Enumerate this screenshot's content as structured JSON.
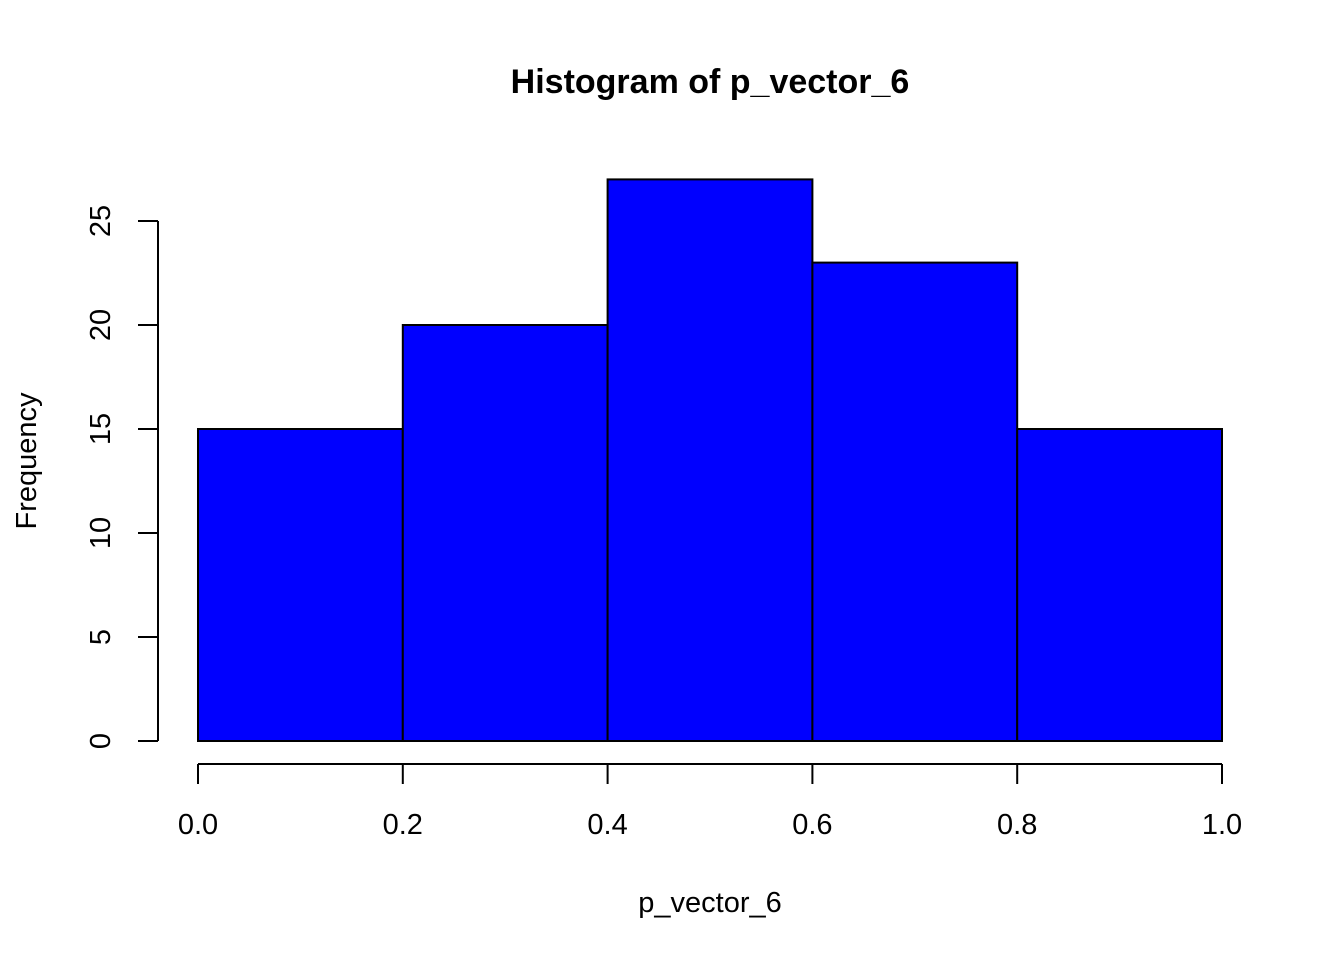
{
  "chart_data": {
    "type": "bar",
    "title": "Histogram of p_vector_6",
    "xlabel": "p_vector_6",
    "ylabel": "Frequency",
    "bins": [
      {
        "start": 0.0,
        "end": 0.2,
        "count": 15
      },
      {
        "start": 0.2,
        "end": 0.4,
        "count": 20
      },
      {
        "start": 0.4,
        "end": 0.6,
        "count": 27
      },
      {
        "start": 0.6,
        "end": 0.8,
        "count": 23
      },
      {
        "start": 0.8,
        "end": 1.0,
        "count": 15
      }
    ],
    "xlim": [
      0.0,
      1.0
    ],
    "ylim": [
      0,
      27
    ],
    "x_ticks": [
      0.0,
      0.2,
      0.4,
      0.6,
      0.8,
      1.0
    ],
    "x_tick_labels": [
      "0.0",
      "0.2",
      "0.4",
      "0.6",
      "0.8",
      "1.0"
    ],
    "y_ticks": [
      0,
      5,
      10,
      15,
      20,
      25
    ],
    "y_tick_labels": [
      "0",
      "5",
      "10",
      "15",
      "20",
      "25"
    ],
    "bar_color": "#0000ff",
    "bar_edge_color": "#000000",
    "grid": false,
    "legend": "none"
  }
}
